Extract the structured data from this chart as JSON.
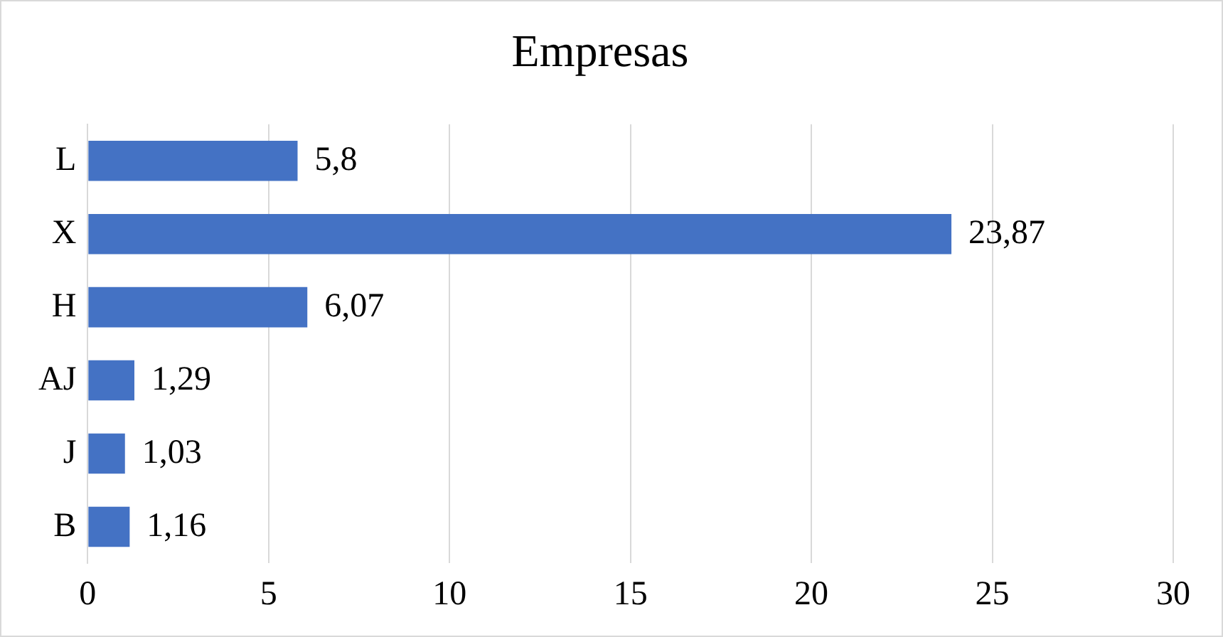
{
  "chart_data": {
    "type": "bar",
    "title": "Empresas",
    "orientation": "horizontal",
    "categories": [
      "L",
      "X",
      "H",
      "AJ",
      "J",
      "B"
    ],
    "values": [
      5.8,
      23.87,
      6.07,
      1.29,
      1.03,
      1.16
    ],
    "value_labels": [
      "5,8",
      "23,87",
      "6,07",
      "1,29",
      "1,03",
      "1,16"
    ],
    "color": "#4472c4",
    "xlim": [
      0,
      30
    ],
    "xticks": [
      0,
      5,
      10,
      15,
      20,
      25,
      30
    ],
    "grid": "x"
  }
}
